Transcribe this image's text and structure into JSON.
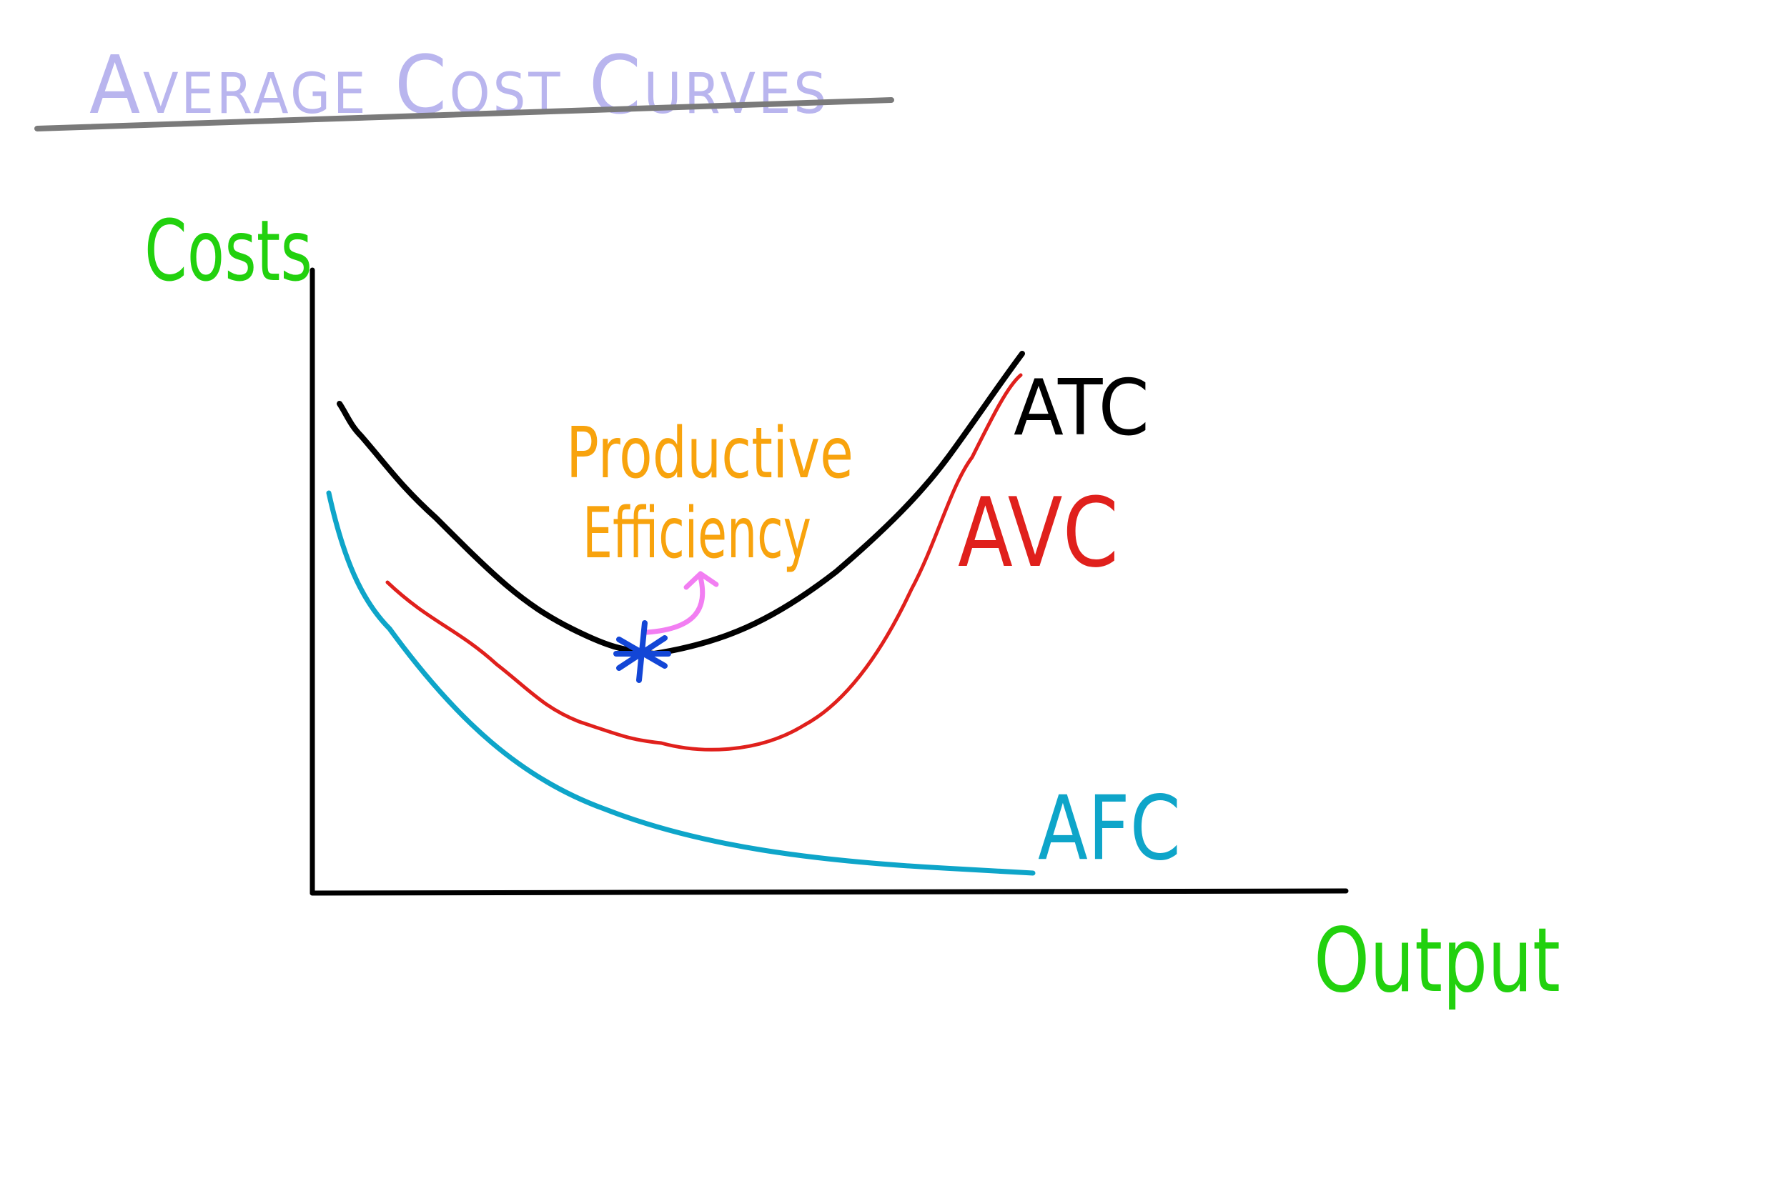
{
  "title": "Average Cost Curves",
  "axes": {
    "y_label": "Costs",
    "x_label": "Output"
  },
  "annotation": {
    "line1": "Productive",
    "line2": "Efficiency"
  },
  "curves": {
    "atc": {
      "label": "ATC",
      "color": "#000000"
    },
    "avc": {
      "label": "AVC",
      "color": "#e0201c"
    },
    "afc": {
      "label": "AFC",
      "color": "#0ea5c9"
    }
  },
  "colors": {
    "title": "#b9b5ee",
    "title_underline": "#7a7a7a",
    "axis_labels": "#22d10e",
    "annotation": "#f8a30d",
    "arrow": "#f27ef2",
    "marker": "#1346d6",
    "axes": "#000000"
  },
  "icons": {
    "marker": "asterisk-icon",
    "arrow": "curved-arrow-icon"
  }
}
